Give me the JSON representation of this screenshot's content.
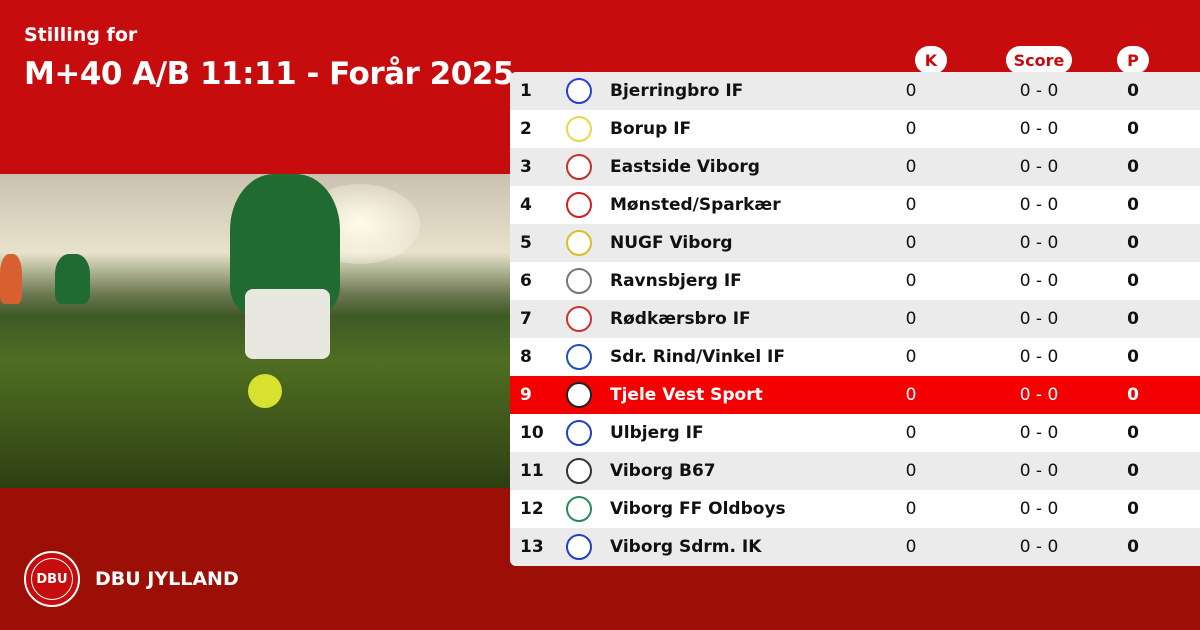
{
  "header": {
    "subtitle": "Stilling for",
    "title": "M+40 A/B 11:11 - Forår 2025"
  },
  "columns": {
    "k": "K",
    "score": "Score",
    "p": "P"
  },
  "colors": {
    "primary": "#c70c0e",
    "footer": "#9c0f06",
    "highlight": "#f50000"
  },
  "rows": [
    {
      "rank": "1",
      "team": "Bjerringbro IF",
      "k": "0",
      "score": "0 - 0",
      "p": "0",
      "logo_color": "#2a3ee0"
    },
    {
      "rank": "2",
      "team": "Borup IF",
      "k": "0",
      "score": "0 - 0",
      "p": "0",
      "logo_color": "#e8d84a"
    },
    {
      "rank": "3",
      "team": "Eastside Viborg",
      "k": "0",
      "score": "0 - 0",
      "p": "0",
      "logo_color": "#c23030"
    },
    {
      "rank": "4",
      "team": "Mønsted/Sparkær",
      "k": "0",
      "score": "0 - 0",
      "p": "0",
      "logo_color": "#d02020"
    },
    {
      "rank": "5",
      "team": "NUGF Viborg",
      "k": "0",
      "score": "0 - 0",
      "p": "0",
      "logo_color": "#d8c020"
    },
    {
      "rank": "6",
      "team": "Ravnsbjerg IF",
      "k": "0",
      "score": "0 - 0",
      "p": "0",
      "logo_color": "#777777"
    },
    {
      "rank": "7",
      "team": "Rødkærsbro IF",
      "k": "0",
      "score": "0 - 0",
      "p": "0",
      "logo_color": "#d03030"
    },
    {
      "rank": "8",
      "team": "Sdr. Rind/Vinkel IF",
      "k": "0",
      "score": "0 - 0",
      "p": "0",
      "logo_color": "#2050c0"
    },
    {
      "rank": "9",
      "team": "Tjele Vest Sport",
      "k": "0",
      "score": "0 - 0",
      "p": "0",
      "logo_color": "#222222",
      "highlight": true
    },
    {
      "rank": "10",
      "team": "Ulbjerg IF",
      "k": "0",
      "score": "0 - 0",
      "p": "0",
      "logo_color": "#2040c0"
    },
    {
      "rank": "11",
      "team": "Viborg B67",
      "k": "0",
      "score": "0 - 0",
      "p": "0",
      "logo_color": "#333333"
    },
    {
      "rank": "12",
      "team": "Viborg FF Oldboys",
      "k": "0",
      "score": "0 - 0",
      "p": "0",
      "logo_color": "#2a8a5a"
    },
    {
      "rank": "13",
      "team": "Viborg Sdrm. IK",
      "k": "0",
      "score": "0 - 0",
      "p": "0",
      "logo_color": "#2040c0"
    }
  ],
  "footer": {
    "brand": "DBU JYLLAND",
    "logo_text": "DBU"
  }
}
